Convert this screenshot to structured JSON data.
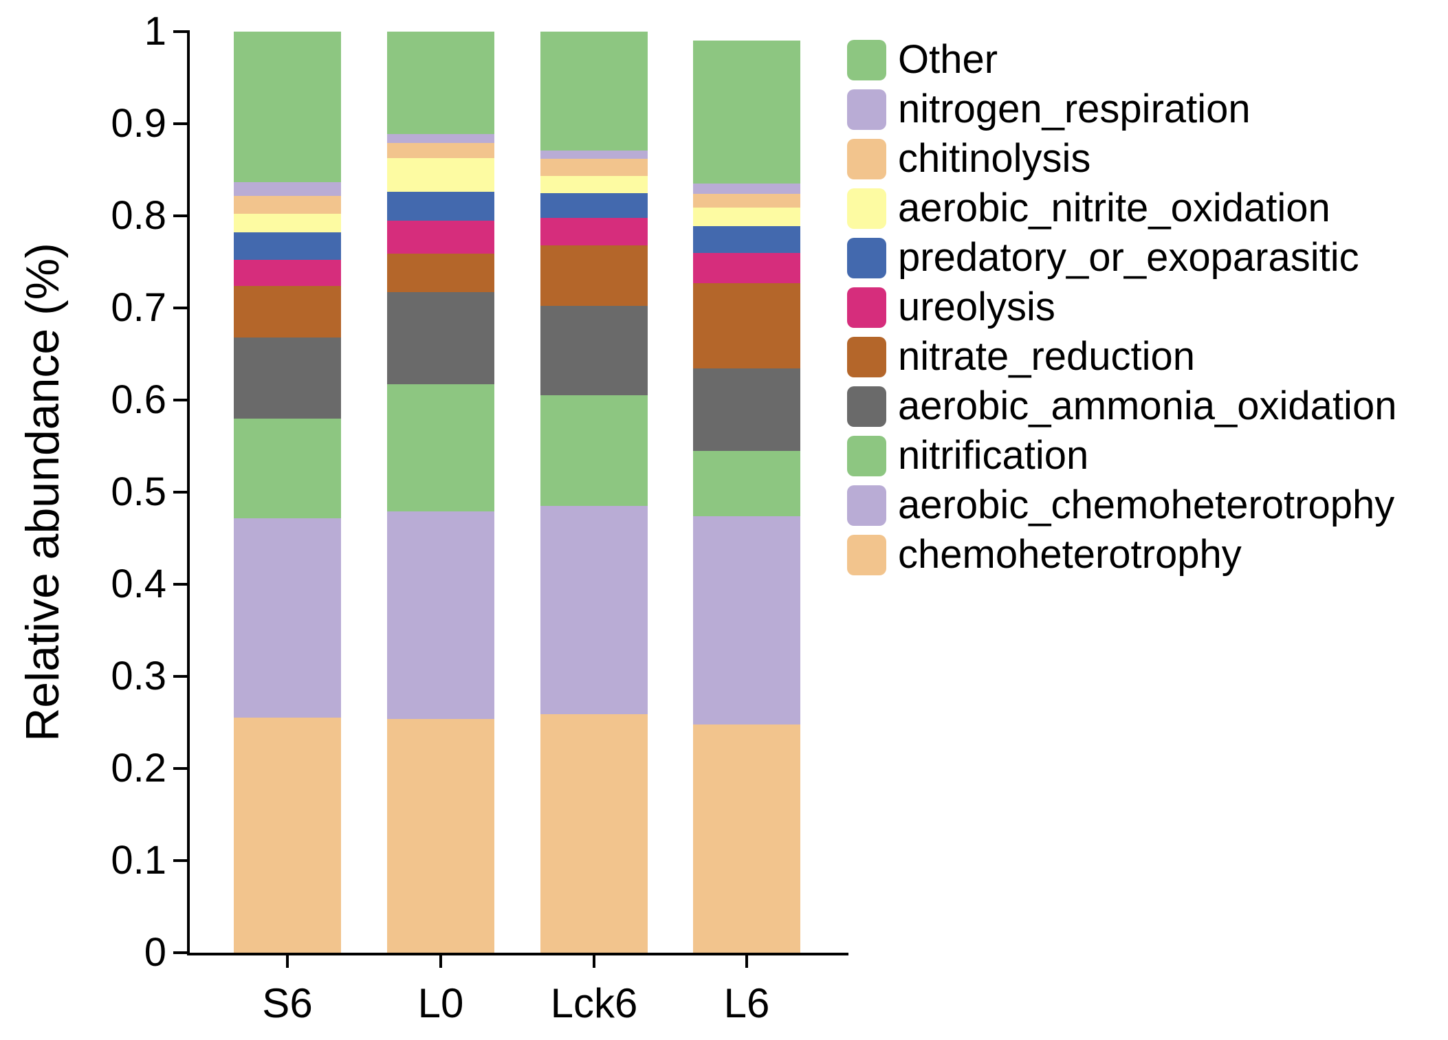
{
  "chart_data": {
    "type": "bar",
    "subtype": "stacked-vertical",
    "title": "",
    "ylabel": "Relative abundance (%)",
    "xlabel": "",
    "ylim": [
      0,
      1
    ],
    "grid": false,
    "legend_position": "right-outside-top",
    "categories": [
      "S6",
      "L0",
      "Lck6",
      "L6"
    ],
    "yticks": [
      "0",
      "0.1",
      "0.2",
      "0.3",
      "0.4",
      "0.5",
      "0.6",
      "0.7",
      "0.8",
      "0.9",
      "1"
    ],
    "series": [
      {
        "name": "chemoheterotrophy",
        "color": "#F2C48D",
        "values": [
          0.255,
          0.254,
          0.259,
          0.248
        ]
      },
      {
        "name": "aerobic_chemoheterotrophy",
        "color": "#B9ACD5",
        "values": [
          0.217,
          0.225,
          0.226,
          0.226
        ]
      },
      {
        "name": "nitrification",
        "color": "#8DC681",
        "values": [
          0.108,
          0.138,
          0.12,
          0.071
        ]
      },
      {
        "name": "aerobic_ammonia_oxidation",
        "color": "#6A6A6A",
        "values": [
          0.088,
          0.1,
          0.097,
          0.089
        ]
      },
      {
        "name": "nitrate_reduction",
        "color": "#B4662A",
        "values": [
          0.056,
          0.042,
          0.066,
          0.093
        ]
      },
      {
        "name": "ureolysis",
        "color": "#D62D7C",
        "values": [
          0.028,
          0.036,
          0.03,
          0.033
        ]
      },
      {
        "name": "predatory_or_exoparasitic",
        "color": "#4369AE",
        "values": [
          0.03,
          0.031,
          0.027,
          0.029
        ]
      },
      {
        "name": "aerobic_nitrite_oxidation",
        "color": "#FDFBA2",
        "values": [
          0.02,
          0.037,
          0.018,
          0.02
        ]
      },
      {
        "name": "chitinolysis",
        "color": "#F2C48D",
        "values": [
          0.02,
          0.016,
          0.019,
          0.015
        ]
      },
      {
        "name": "nitrogen_respiration",
        "color": "#B9ACD5",
        "values": [
          0.015,
          0.01,
          0.009,
          0.011
        ]
      },
      {
        "name": "Other",
        "color": "#8DC681",
        "values": [
          0.163,
          0.111,
          0.129,
          0.155
        ]
      }
    ],
    "bar_totals": [
      1.0,
      1.0,
      1.0,
      0.99
    ],
    "legend_order": [
      "Other",
      "nitrogen_respiration",
      "chitinolysis",
      "aerobic_nitrite_oxidation",
      "predatory_or_exoparasitic",
      "ureolysis",
      "nitrate_reduction",
      "aerobic_ammonia_oxidation",
      "nitrification",
      "aerobic_chemoheterotrophy",
      "chemoheterotrophy"
    ]
  }
}
